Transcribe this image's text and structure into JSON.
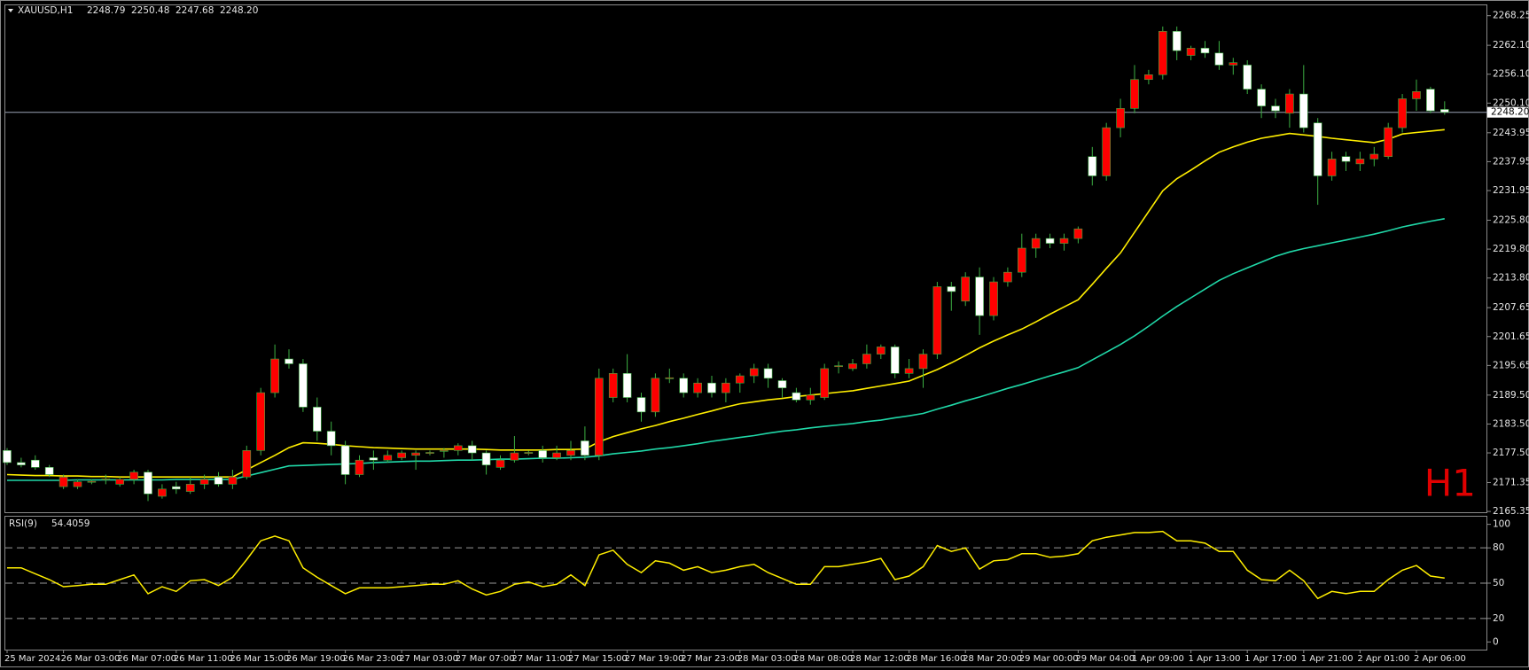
{
  "chart_data": {
    "type": "candlestick",
    "title": "XAUUSD,H1",
    "timeframe_label": "H1",
    "background": "#000000",
    "bull_color": "#ff0000",
    "bear_color": "#ffffff",
    "wick_color": "#3cb043",
    "categories": [
      "25 Mar 2024",
      null,
      null,
      null,
      "26 Mar 03:00",
      null,
      null,
      null,
      "26 Mar 07:00",
      null,
      null,
      null,
      "26 Mar 11:00",
      null,
      null,
      null,
      "26 Mar 15:00",
      null,
      null,
      null,
      "26 Mar 19:00",
      null,
      null,
      null,
      "26 Mar 23:00",
      null,
      null,
      null,
      "27 Mar 03:00",
      null,
      null,
      null,
      "27 Mar 07:00",
      null,
      null,
      null,
      "27 Mar 11:00",
      null,
      null,
      null,
      "27 Mar 15:00",
      null,
      null,
      null,
      "27 Mar 19:00",
      null,
      null,
      null,
      "27 Mar 23:00",
      null,
      null,
      null,
      "28 Mar 03:00",
      null,
      null,
      null,
      "28 Mar 08:00",
      null,
      null,
      null,
      "28 Mar 12:00",
      null,
      null,
      null,
      "28 Mar 16:00",
      null,
      null,
      null,
      "28 Mar 20:00",
      null,
      null,
      null,
      "29 Mar 00:00",
      null,
      null,
      null,
      "29 Mar 04:00",
      null,
      null,
      null,
      "1 Apr 09:00",
      null,
      null,
      null,
      "1 Apr 13:00",
      null,
      null,
      null,
      "1 Apr 17:00",
      null,
      null,
      null,
      "1 Apr 21:00",
      null,
      null,
      null,
      "2 Apr 01:00",
      null,
      null,
      null,
      "2 Apr 06:00",
      null,
      null
    ],
    "open": [
      2178,
      2175.5,
      2176,
      2174.5,
      2170.5,
      2170.5,
      2171.4,
      2172,
      2171,
      2172,
      2173.5,
      2168.5,
      2170.5,
      2169.5,
      2171,
      2172.5,
      2171,
      2172.5,
      2178,
      2190,
      2197,
      2196,
      2187,
      2182,
      2179,
      2173,
      2176.5,
      2176,
      2176.5,
      2177,
      2177.4,
      2177.9,
      2178,
      2179,
      2177.5,
      2174.5,
      2176,
      2177.4,
      2178,
      2176.5,
      2177,
      2180,
      2177,
      2189,
      2194,
      2189,
      2186,
      2192.9,
      2193,
      2190,
      2192,
      2190,
      2192,
      2193.5,
      2195,
      2192.5,
      2190,
      2188.5,
      2189,
      2195.4,
      2195,
      2196,
      2198,
      2199.5,
      2194,
      2195,
      2198,
      2212,
      2209,
      2214,
      2206,
      2213,
      2215,
      2220,
      2222,
      2221,
      2222,
      2239,
      2235,
      2245,
      2249,
      2255,
      2256,
      2265,
      2260,
      2261.5,
      2260.5,
      2258,
      2258,
      2253,
      2249.5,
      2248,
      2252,
      2246,
      2235,
      2239,
      2237.5,
      2238.5,
      2239,
      2245,
      2251,
      2253,
      2248.79
    ],
    "high": [
      2178.5,
      2176.5,
      2177,
      2175,
      2173,
      2172,
      2172,
      2173,
      2172.5,
      2174,
      2174,
      2171,
      2171.5,
      2172.5,
      2173,
      2173.5,
      2174,
      2179,
      2191,
      2200,
      2199,
      2197,
      2189,
      2184,
      2180,
      2177,
      2178,
      2178,
      2178,
      2178,
      2178,
      2178.5,
      2179.5,
      2180,
      2178,
      2177,
      2181,
      2178,
      2179,
      2179,
      2180,
      2183,
      2195,
      2195,
      2198,
      2190,
      2194,
      2195,
      2194,
      2193,
      2193.5,
      2193,
      2194,
      2196,
      2196,
      2193,
      2191,
      2191,
      2196,
      2196.5,
      2197,
      2200,
      2200,
      2200,
      2197,
      2199,
      2213,
      2213,
      2215,
      2216,
      2214,
      2216,
      2223,
      2223,
      2223,
      2223,
      2224.5,
      2241,
      2246,
      2251,
      2258,
      2257,
      2266,
      2266,
      2262,
      2263,
      2263,
      2259.5,
      2259,
      2254,
      2251,
      2253,
      2258,
      2247,
      2240,
      2240,
      2240,
      2241,
      2246,
      2252,
      2255,
      2253.5,
      2250.48
    ],
    "low": [
      2175,
      2174.5,
      2174,
      2172.5,
      2170,
      2170,
      2171,
      2171,
      2170.5,
      2171,
      2167.5,
      2168,
      2169,
      2169,
      2170,
      2170.5,
      2170,
      2172,
      2177,
      2189,
      2195,
      2186,
      2180,
      2177,
      2171,
      2172.5,
      2174,
      2175.5,
      2176,
      2174,
      2177,
      2176.5,
      2177,
      2176,
      2173,
      2174,
      2175.5,
      2177,
      2175.5,
      2176,
      2176,
      2176,
      2176,
      2188,
      2188,
      2184,
      2185,
      2192,
      2189,
      2189,
      2189,
      2188,
      2190,
      2192,
      2191,
      2189,
      2188,
      2187.5,
      2188.5,
      2194,
      2194.5,
      2195,
      2197,
      2193,
      2193,
      2191,
      2197,
      2207,
      2208,
      2202,
      2205,
      2212,
      2214,
      2218,
      2220,
      2219.5,
      2221,
      2233,
      2234,
      2243,
      2248,
      2254,
      2255,
      2259,
      2259,
      2259.5,
      2257,
      2256,
      2252,
      2247,
      2247,
      2245,
      2244,
      2229,
      2234,
      2236,
      2236,
      2237,
      2238.5,
      2244,
      2248.5,
      2248,
      2247.68
    ],
    "close": [
      2175.5,
      2175,
      2174.5,
      2173,
      2172.5,
      2171.5,
      2171.6,
      2172.1,
      2172,
      2173.5,
      2169,
      2170,
      2170,
      2171,
      2172,
      2171,
      2172.5,
      2178,
      2190,
      2197,
      2196,
      2187,
      2182,
      2179,
      2173,
      2176,
      2176,
      2177,
      2177.5,
      2177.5,
      2177.6,
      2178,
      2179,
      2177.5,
      2175,
      2176,
      2177.5,
      2177.6,
      2176.5,
      2177.5,
      2178,
      2177,
      2193,
      2194,
      2189,
      2186,
      2193,
      2193.1,
      2190,
      2192,
      2190,
      2192,
      2193.5,
      2195,
      2193,
      2191,
      2188.5,
      2189.5,
      2195,
      2195.6,
      2196,
      2198,
      2199.5,
      2194,
      2195,
      2198,
      2212,
      2211,
      2214,
      2206,
      2213,
      2215,
      2220,
      2222,
      2221,
      2222,
      2224,
      2235,
      2245,
      2249,
      2255,
      2256,
      2265,
      2261,
      2261.5,
      2260.5,
      2258,
      2258.5,
      2253,
      2249.5,
      2248.5,
      2252,
      2245,
      2235,
      2238.5,
      2238,
      2238.5,
      2239.5,
      2245,
      2251,
      2252.5,
      2248.5,
      2248.2
    ],
    "last_price": {
      "value": 2248.2,
      "label": "2248.20"
    },
    "ma_lines": [
      {
        "color": "#ffee00",
        "values": [
          2173,
          2172.9,
          2172.8,
          2172.8,
          2172.7,
          2172.7,
          2172.6,
          2172.6,
          2172.5,
          2172.5,
          2172.5,
          2172.5,
          2172.5,
          2172.5,
          2172.5,
          2172.5,
          2172.5,
          2174,
          2175.5,
          2177,
          2178.6,
          2179.6,
          2179.5,
          2179.3,
          2179,
          2178.8,
          2178.6,
          2178.5,
          2178.4,
          2178.3,
          2178.3,
          2178.3,
          2178.3,
          2178.3,
          2178.2,
          2178.1,
          2178.1,
          2178.1,
          2178.1,
          2178.2,
          2178.2,
          2178.3,
          2179.8,
          2180.9,
          2181.7,
          2182.5,
          2183.2,
          2184,
          2184.7,
          2185.5,
          2186.2,
          2187,
          2187.7,
          2188.1,
          2188.5,
          2188.8,
          2189.2,
          2189.5,
          2189.8,
          2190.1,
          2190.4,
          2190.9,
          2191.4,
          2191.9,
          2192.4,
          2193.6,
          2194.8,
          2196.2,
          2197.7,
          2199.3,
          2200.7,
          2202,
          2203.2,
          2204.7,
          2206.3,
          2207.8,
          2209.3,
          2212.5,
          2215.8,
          2219,
          2223.3,
          2227.6,
          2231.9,
          2234.4,
          2236.2,
          2238.1,
          2239.9,
          2241,
          2242,
          2242.8,
          2243.3,
          2243.8,
          2243.5,
          2243.2,
          2242.8,
          2242.5,
          2242.2,
          2241.9,
          2242.6,
          2243.7,
          2244,
          2244.3,
          2244.6
        ]
      },
      {
        "color": "#20d8a8",
        "values": [
          2171.8,
          2171.8,
          2171.8,
          2171.8,
          2171.8,
          2171.9,
          2171.9,
          2171.9,
          2171.9,
          2171.9,
          2171.9,
          2171.9,
          2172,
          2172,
          2172,
          2172,
          2172,
          2172.7,
          2173.4,
          2174.1,
          2174.8,
          2174.9,
          2175,
          2175.1,
          2175.2,
          2175.3,
          2175.5,
          2175.6,
          2175.7,
          2175.8,
          2175.8,
          2175.9,
          2176,
          2176,
          2176.1,
          2176.2,
          2176.2,
          2176.3,
          2176.4,
          2176.4,
          2176.5,
          2176.6,
          2176.9,
          2177.3,
          2177.6,
          2177.9,
          2178.3,
          2178.6,
          2179,
          2179.4,
          2179.9,
          2180.3,
          2180.7,
          2181.1,
          2181.6,
          2182,
          2182.3,
          2182.7,
          2183,
          2183.3,
          2183.6,
          2184,
          2184.3,
          2184.8,
          2185.2,
          2185.7,
          2186.6,
          2187.4,
          2188.3,
          2189.1,
          2190,
          2190.9,
          2191.7,
          2192.6,
          2193.5,
          2194.3,
          2195.2,
          2196.8,
          2198.4,
          2200,
          2201.8,
          2203.8,
          2205.9,
          2207.9,
          2209.7,
          2211.5,
          2213.3,
          2214.7,
          2215.9,
          2217.1,
          2218.3,
          2219.2,
          2219.9,
          2220.5,
          2221.1,
          2221.7,
          2222.3,
          2222.9,
          2223.6,
          2224.4,
          2225,
          2225.6,
          2226.1
        ]
      }
    ],
    "ylim": [
      2165,
      2270.4
    ],
    "yticks": [
      2268.25,
      {
        "value": 2262.1,
        "label": "2262.10"
      },
      {
        "value": 2256.1,
        "label": "2256.10"
      },
      {
        "value": 2250.1,
        "label": "2250.10"
      },
      2243.95,
      2237.95,
      2231.95,
      {
        "value": 2225.8,
        "label": "2225.80"
      },
      {
        "value": 2219.8,
        "label": "2219.80"
      },
      {
        "value": 2213.8,
        "label": "2213.80"
      },
      2207.65,
      2201.65,
      2195.65,
      {
        "value": 2189.5,
        "label": "2189.50"
      },
      {
        "value": 2183.5,
        "label": "2183.50"
      },
      {
        "value": 2177.5,
        "label": "2177.50"
      },
      2171.35,
      2165.35
    ],
    "grid": false,
    "rsi": {
      "title": "RSI(9)",
      "color": "#ffee00",
      "values": [
        63,
        63,
        58,
        53,
        47,
        48,
        49,
        49,
        53,
        57,
        41,
        47,
        43,
        52,
        53,
        48,
        55,
        70,
        86,
        90,
        86,
        63,
        55,
        48,
        41,
        46,
        46,
        46,
        47,
        48,
        49,
        49,
        52,
        45,
        40,
        43,
        49,
        51,
        47,
        49,
        57,
        48,
        74,
        78,
        66,
        59,
        69,
        67,
        61,
        64,
        59,
        61,
        64,
        66,
        59,
        54,
        49,
        49,
        64,
        64,
        66,
        68,
        71,
        53,
        56,
        64,
        82,
        77,
        80,
        62,
        69,
        70,
        75,
        75,
        72,
        73,
        75,
        86,
        89,
        91,
        93,
        93,
        94,
        86,
        86,
        84,
        77,
        77,
        61,
        53,
        52,
        61,
        52,
        37,
        43,
        41,
        43,
        43,
        53,
        61,
        65,
        56,
        54.4059
      ],
      "ylim": [
        -6.5,
        106.5
      ],
      "yticks": [
        0,
        20,
        50,
        80,
        100
      ],
      "levels": [
        20,
        50,
        80
      ]
    }
  }
}
